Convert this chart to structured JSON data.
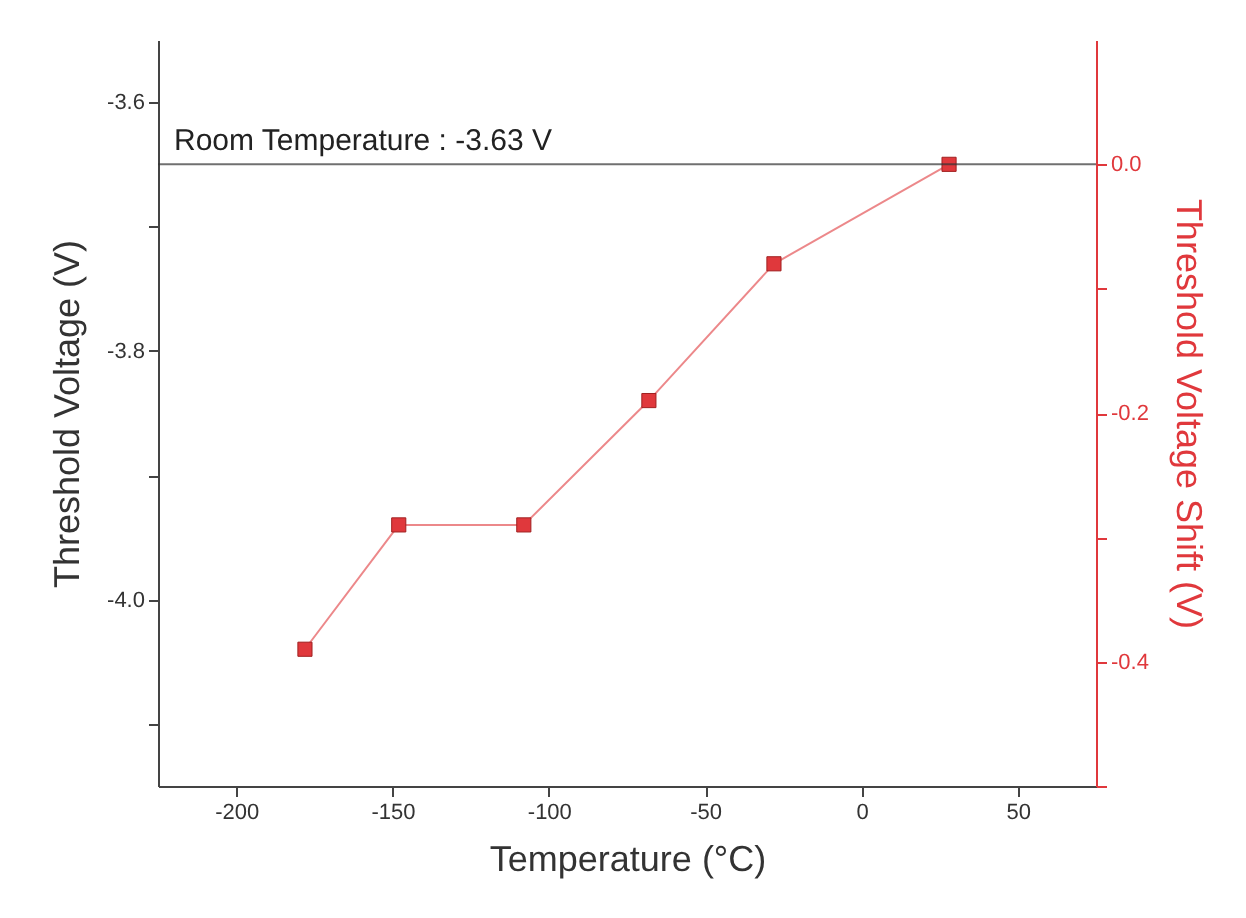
{
  "chart_data": {
    "type": "line",
    "xlabel": "Temperature (°C)",
    "ylabel": "Threshold Voltage (V)",
    "y2label": "Threshold Voltage Shift (V)",
    "x": [
      -178,
      -148,
      -108,
      -68,
      -28,
      28
    ],
    "series": [
      {
        "color": "#e0383c",
        "values": [
          -4.04,
          -3.94,
          -3.94,
          -3.84,
          -3.73,
          -3.65
        ]
      }
    ],
    "marker": "square",
    "line_style": "solid",
    "xlim": [
      -225,
      75
    ],
    "xticks": [
      -200,
      -150,
      -100,
      -50,
      0,
      50
    ],
    "ylim": [
      -4.15,
      -3.55
    ],
    "yticks": [
      {
        "value": -4.1,
        "label": null
      },
      {
        "value": -4.0,
        "label": "-4.0"
      },
      {
        "value": -3.9,
        "label": null
      },
      -3.8,
      {
        "value": -3.7,
        "label": null
      },
      -3.6
    ],
    "y2lim": [
      -0.5,
      0.1
    ],
    "y2ticks": [
      {
        "value": -0.5,
        "label": null
      },
      -0.4,
      {
        "value": -0.3,
        "label": null
      },
      -0.2,
      {
        "value": -0.1,
        "label": null
      },
      {
        "value": 0,
        "label": "0.0"
      }
    ],
    "ref_lines": [
      {
        "axis": "y",
        "value": -3.65,
        "color": "#333333"
      }
    ],
    "annotations": [
      {
        "text": "Room Temperature : -3.63 V",
        "x": -225,
        "y": -3.65
      }
    ]
  }
}
